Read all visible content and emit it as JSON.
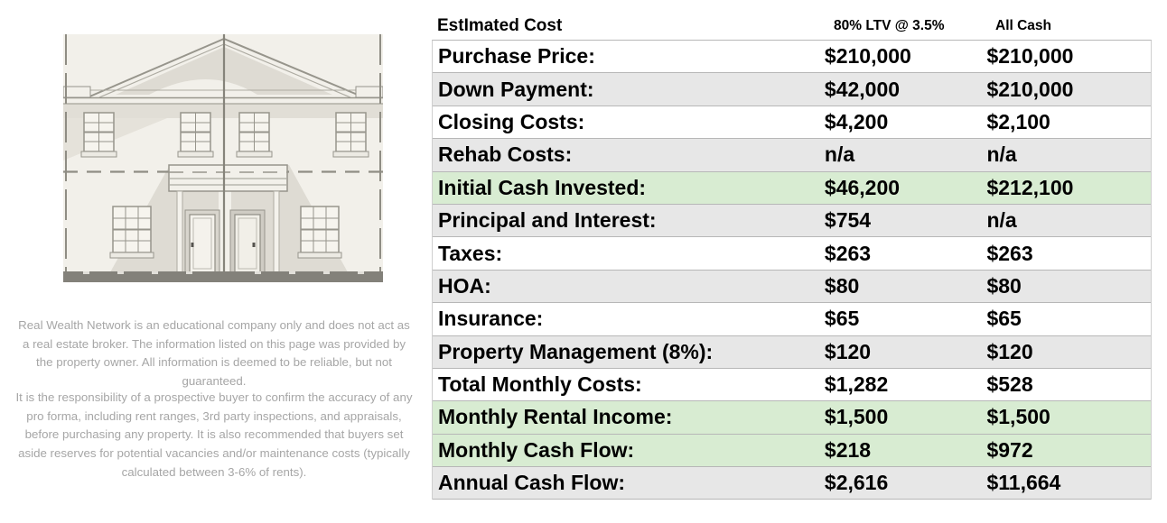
{
  "table": {
    "header": {
      "col1": "EstImated Cost",
      "col2": "80% LTV @ 3.5%",
      "col3": "All Cash"
    },
    "rows": [
      {
        "label": "Purchase Price:",
        "ltv": "$210,000",
        "cash": "$210,000",
        "bg": "white"
      },
      {
        "label": "Down Payment:",
        "ltv": "$42,000",
        "cash": "$210,000",
        "bg": "gray"
      },
      {
        "label": "Closing Costs:",
        "ltv": "$4,200",
        "cash": "$2,100",
        "bg": "white"
      },
      {
        "label": "Rehab Costs:",
        "ltv": "n/a",
        "cash": "n/a",
        "bg": "gray"
      },
      {
        "label": "Initial Cash Invested:",
        "ltv": "$46,200",
        "cash": "$212,100",
        "bg": "green"
      },
      {
        "label": "Principal and Interest:",
        "ltv": "$754",
        "cash": "n/a",
        "bg": "gray"
      },
      {
        "label": "Taxes:",
        "ltv": "$263",
        "cash": "$263",
        "bg": "white"
      },
      {
        "label": "HOA:",
        "ltv": "$80",
        "cash": "$80",
        "bg": "gray"
      },
      {
        "label": "Insurance:",
        "ltv": "$65",
        "cash": "$65",
        "bg": "white"
      },
      {
        "label": "Property Management (8%):",
        "ltv": "$120",
        "cash": "$120",
        "bg": "gray"
      },
      {
        "label": "Total Monthly Costs:",
        "ltv": "$1,282",
        "cash": "$528",
        "bg": "white"
      },
      {
        "label": "Monthly Rental Income:",
        "ltv": "$1,500",
        "cash": "$1,500",
        "bg": "green"
      },
      {
        "label": "Monthly Cash Flow:",
        "ltv": "$218",
        "cash": "$972",
        "bg": "green"
      },
      {
        "label": "Annual Cash Flow:",
        "ltv": "$2,616",
        "cash": "$11,664",
        "bg": "gray"
      }
    ],
    "colors": {
      "gray_row": "#e7e7e7",
      "green_row": "#d8ecd2",
      "row_border": "#b7b7b7"
    }
  },
  "disclaimer": {
    "paragraph1": "Real Wealth Network is an educational company only and does not act as a real estate broker. The information listed on this page was provided by the property owner. All information is deemed to be reliable, but not guaranteed.",
    "paragraph2": "It is the responsibility of a prospective buyer to confirm the accuracy of any pro forma, including rent ranges, 3rd party inspections, and appraisals, before purchasing any property. It is also recommended that buyers set aside reserves for potential vacancies and/or maintenance costs (typically calculated between 3-6% of rents)."
  },
  "illustration": {
    "name": "duplex-front-elevation-drawing"
  }
}
